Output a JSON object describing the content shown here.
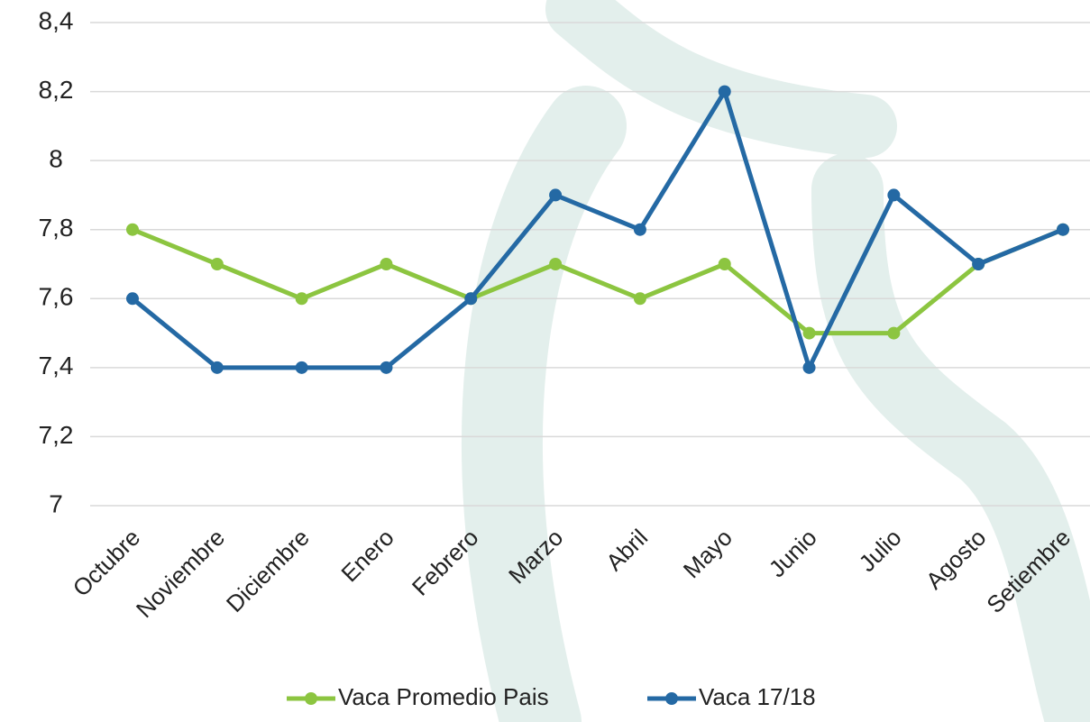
{
  "chart_data": {
    "type": "line",
    "categories": [
      "Octubre",
      "Noviembre",
      "Diciembre",
      "Enero",
      "Febrero",
      "Marzo",
      "Abril",
      "Mayo",
      "Junio",
      "Julio",
      "Agosto",
      "Setiembre"
    ],
    "series": [
      {
        "name": "Vaca Promedio Pais",
        "color": "#8cc540",
        "values": [
          7.8,
          7.7,
          7.6,
          7.7,
          7.6,
          7.7,
          7.6,
          7.7,
          7.5,
          7.5,
          7.7,
          7.8
        ]
      },
      {
        "name": "Vaca 17/18",
        "color": "#2469a4",
        "values": [
          7.6,
          7.4,
          7.4,
          7.4,
          7.6,
          7.9,
          7.8,
          8.2,
          7.4,
          7.9,
          7.7,
          7.8
        ]
      }
    ],
    "ylim": [
      7,
      8.4
    ],
    "yticks": [
      7,
      {
        "value": 7.2,
        "label": "7,2"
      },
      {
        "value": 7.4,
        "label": "7,4"
      },
      {
        "value": 7.6,
        "label": "7,6"
      },
      {
        "value": 7.8,
        "label": "7,8"
      },
      8,
      {
        "value": 8.2,
        "label": "8,2"
      },
      {
        "value": 8.4,
        "label": "8,4"
      }
    ],
    "grid": true,
    "legend": "bottom"
  }
}
